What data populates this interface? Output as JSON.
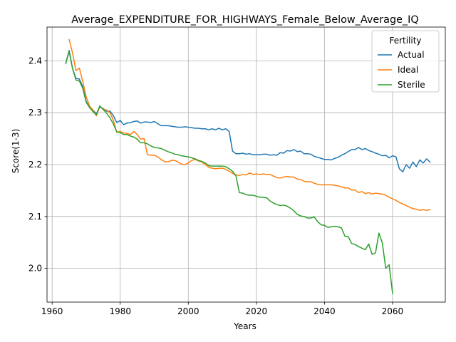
{
  "chart_data": {
    "type": "line",
    "title": "Average_EXPENDITURE_FOR_HIGHWAYS_Female_Below_Average_IQ",
    "xlabel": "Years",
    "ylabel": "Score(1-3)",
    "xlim": [
      1958.5,
      2075.5
    ],
    "ylim": [
      1.935,
      2.465
    ],
    "x_ticks": [
      1960,
      1980,
      2000,
      2020,
      2040,
      2060
    ],
    "y_ticks": [
      2.0,
      2.1,
      2.2,
      2.3,
      2.4
    ],
    "y_tick_labels": [
      "2.0",
      "2.1",
      "2.2",
      "2.3",
      "2.4"
    ],
    "grid": true,
    "legend": {
      "title": "Fertility",
      "position": "top-right"
    },
    "series": [
      {
        "name": "Actual",
        "color": "#1f77b4",
        "points": [
          [
            1964,
            2.395
          ],
          [
            1965,
            2.42
          ],
          [
            1966,
            2.385
          ],
          [
            1967,
            2.366
          ],
          [
            1968,
            2.365
          ],
          [
            1969,
            2.35
          ],
          [
            1970,
            2.322
          ],
          [
            1971,
            2.31
          ],
          [
            1972,
            2.305
          ],
          [
            1973,
            2.298
          ],
          [
            1974,
            2.311
          ],
          [
            1975,
            2.308
          ],
          [
            1976,
            2.303
          ],
          [
            1977,
            2.303
          ],
          [
            1978,
            2.294
          ],
          [
            1979,
            2.281
          ],
          [
            1980,
            2.285
          ],
          [
            1981,
            2.277
          ],
          [
            1982,
            2.28
          ],
          [
            1983,
            2.281
          ],
          [
            1984,
            2.283
          ],
          [
            1985,
            2.284
          ],
          [
            1986,
            2.28
          ],
          [
            1987,
            2.282
          ],
          [
            1988,
            2.282
          ],
          [
            1989,
            2.281
          ],
          [
            1990,
            2.283
          ],
          [
            1991,
            2.279
          ],
          [
            1992,
            2.275
          ],
          [
            1993,
            2.275
          ],
          [
            1994,
            2.275
          ],
          [
            1995,
            2.274
          ],
          [
            1996,
            2.273
          ],
          [
            1997,
            2.272
          ],
          [
            1998,
            2.272
          ],
          [
            1999,
            2.273
          ],
          [
            2000,
            2.272
          ],
          [
            2001,
            2.271
          ],
          [
            2002,
            2.27
          ],
          [
            2003,
            2.27
          ],
          [
            2004,
            2.269
          ],
          [
            2005,
            2.269
          ],
          [
            2006,
            2.267
          ],
          [
            2007,
            2.269
          ],
          [
            2008,
            2.267
          ],
          [
            2009,
            2.27
          ],
          [
            2010,
            2.267
          ],
          [
            2011,
            2.269
          ],
          [
            2012,
            2.264
          ],
          [
            2013,
            2.226
          ],
          [
            2014,
            2.221
          ],
          [
            2015,
            2.221
          ],
          [
            2016,
            2.222
          ],
          [
            2017,
            2.22
          ],
          [
            2018,
            2.221
          ],
          [
            2019,
            2.219
          ],
          [
            2020,
            2.219
          ],
          [
            2021,
            2.219
          ],
          [
            2022,
            2.22
          ],
          [
            2023,
            2.22
          ],
          [
            2024,
            2.218
          ],
          [
            2025,
            2.219
          ],
          [
            2026,
            2.218
          ],
          [
            2027,
            2.223
          ],
          [
            2028,
            2.222
          ],
          [
            2029,
            2.227
          ],
          [
            2030,
            2.226
          ],
          [
            2031,
            2.229
          ],
          [
            2032,
            2.225
          ],
          [
            2033,
            2.226
          ],
          [
            2034,
            2.221
          ],
          [
            2035,
            2.221
          ],
          [
            2036,
            2.22
          ],
          [
            2037,
            2.216
          ],
          [
            2038,
            2.214
          ],
          [
            2039,
            2.212
          ],
          [
            2040,
            2.21
          ],
          [
            2041,
            2.21
          ],
          [
            2042,
            2.209
          ],
          [
            2043,
            2.212
          ],
          [
            2044,
            2.214
          ],
          [
            2045,
            2.218
          ],
          [
            2046,
            2.221
          ],
          [
            2047,
            2.225
          ],
          [
            2048,
            2.229
          ],
          [
            2049,
            2.229
          ],
          [
            2050,
            2.233
          ],
          [
            2051,
            2.229
          ],
          [
            2052,
            2.231
          ],
          [
            2053,
            2.227
          ],
          [
            2054,
            2.225
          ],
          [
            2055,
            2.222
          ],
          [
            2056,
            2.22
          ],
          [
            2057,
            2.217
          ],
          [
            2058,
            2.218
          ],
          [
            2059,
            2.213
          ],
          [
            2060,
            2.217
          ],
          [
            2061,
            2.215
          ],
          [
            2062,
            2.192
          ],
          [
            2063,
            2.186
          ],
          [
            2064,
            2.2
          ],
          [
            2065,
            2.193
          ],
          [
            2066,
            2.205
          ],
          [
            2067,
            2.196
          ],
          [
            2068,
            2.209
          ],
          [
            2069,
            2.203
          ],
          [
            2070,
            2.211
          ],
          [
            2071,
            2.205
          ]
        ]
      },
      {
        "name": "Ideal",
        "color": "#ff7f0e",
        "points": [
          [
            1965,
            2.441
          ],
          [
            1966,
            2.415
          ],
          [
            1967,
            2.381
          ],
          [
            1968,
            2.386
          ],
          [
            1969,
            2.36
          ],
          [
            1970,
            2.331
          ],
          [
            1971,
            2.313
          ],
          [
            1972,
            2.305
          ],
          [
            1973,
            2.294
          ],
          [
            1974,
            2.312
          ],
          [
            1975,
            2.307
          ],
          [
            1976,
            2.305
          ],
          [
            1977,
            2.3
          ],
          [
            1978,
            2.285
          ],
          [
            1979,
            2.262
          ],
          [
            1980,
            2.264
          ],
          [
            1981,
            2.261
          ],
          [
            1982,
            2.26
          ],
          [
            1983,
            2.258
          ],
          [
            1984,
            2.264
          ],
          [
            1985,
            2.258
          ],
          [
            1986,
            2.249
          ],
          [
            1987,
            2.25
          ],
          [
            1988,
            2.219
          ],
          [
            1989,
            2.218
          ],
          [
            1990,
            2.218
          ],
          [
            1991,
            2.215
          ],
          [
            1992,
            2.21
          ],
          [
            1993,
            2.206
          ],
          [
            1994,
            2.205
          ],
          [
            1995,
            2.208
          ],
          [
            1996,
            2.208
          ],
          [
            1997,
            2.205
          ],
          [
            1998,
            2.201
          ],
          [
            1999,
            2.2
          ],
          [
            2000,
            2.203
          ],
          [
            2001,
            2.208
          ],
          [
            2002,
            2.21
          ],
          [
            2003,
            2.207
          ],
          [
            2004,
            2.205
          ],
          [
            2005,
            2.2
          ],
          [
            2006,
            2.195
          ],
          [
            2007,
            2.193
          ],
          [
            2008,
            2.192
          ],
          [
            2009,
            2.193
          ],
          [
            2010,
            2.193
          ],
          [
            2011,
            2.191
          ],
          [
            2012,
            2.187
          ],
          [
            2013,
            2.183
          ],
          [
            2014,
            2.18
          ],
          [
            2015,
            2.179
          ],
          [
            2016,
            2.181
          ],
          [
            2017,
            2.18
          ],
          [
            2018,
            2.184
          ],
          [
            2019,
            2.181
          ],
          [
            2020,
            2.182
          ],
          [
            2021,
            2.181
          ],
          [
            2022,
            2.182
          ],
          [
            2023,
            2.181
          ],
          [
            2024,
            2.181
          ],
          [
            2025,
            2.178
          ],
          [
            2026,
            2.175
          ],
          [
            2027,
            2.174
          ],
          [
            2028,
            2.176
          ],
          [
            2029,
            2.177
          ],
          [
            2030,
            2.176
          ],
          [
            2031,
            2.176
          ],
          [
            2032,
            2.172
          ],
          [
            2033,
            2.171
          ],
          [
            2034,
            2.168
          ],
          [
            2035,
            2.167
          ],
          [
            2036,
            2.167
          ],
          [
            2037,
            2.164
          ],
          [
            2038,
            2.162
          ],
          [
            2039,
            2.161
          ],
          [
            2040,
            2.161
          ],
          [
            2041,
            2.161
          ],
          [
            2042,
            2.161
          ],
          [
            2043,
            2.16
          ],
          [
            2044,
            2.159
          ],
          [
            2045,
            2.157
          ],
          [
            2046,
            2.155
          ],
          [
            2047,
            2.155
          ],
          [
            2048,
            2.151
          ],
          [
            2049,
            2.151
          ],
          [
            2050,
            2.146
          ],
          [
            2051,
            2.148
          ],
          [
            2052,
            2.144
          ],
          [
            2053,
            2.146
          ],
          [
            2054,
            2.143
          ],
          [
            2055,
            2.145
          ],
          [
            2056,
            2.144
          ],
          [
            2057,
            2.143
          ],
          [
            2058,
            2.141
          ],
          [
            2059,
            2.137
          ],
          [
            2060,
            2.134
          ],
          [
            2061,
            2.131
          ],
          [
            2062,
            2.127
          ],
          [
            2063,
            2.124
          ],
          [
            2064,
            2.121
          ],
          [
            2065,
            2.118
          ],
          [
            2066,
            2.115
          ],
          [
            2067,
            2.114
          ],
          [
            2068,
            2.112
          ],
          [
            2069,
            2.113
          ],
          [
            2070,
            2.112
          ],
          [
            2071,
            2.113
          ]
        ]
      },
      {
        "name": "Sterile",
        "color": "#2ca02c",
        "points": [
          [
            1964,
            2.395
          ],
          [
            1965,
            2.418
          ],
          [
            1966,
            2.385
          ],
          [
            1967,
            2.363
          ],
          [
            1968,
            2.361
          ],
          [
            1969,
            2.347
          ],
          [
            1970,
            2.32
          ],
          [
            1971,
            2.31
          ],
          [
            1972,
            2.302
          ],
          [
            1973,
            2.296
          ],
          [
            1974,
            2.313
          ],
          [
            1975,
            2.306
          ],
          [
            1976,
            2.299
          ],
          [
            1977,
            2.29
          ],
          [
            1978,
            2.278
          ],
          [
            1979,
            2.263
          ],
          [
            1980,
            2.262
          ],
          [
            1981,
            2.258
          ],
          [
            1982,
            2.258
          ],
          [
            1983,
            2.255
          ],
          [
            1984,
            2.253
          ],
          [
            1985,
            2.249
          ],
          [
            1986,
            2.242
          ],
          [
            1987,
            2.242
          ],
          [
            1988,
            2.24
          ],
          [
            1989,
            2.236
          ],
          [
            1990,
            2.233
          ],
          [
            1991,
            2.232
          ],
          [
            1992,
            2.231
          ],
          [
            1993,
            2.228
          ],
          [
            1994,
            2.225
          ],
          [
            1995,
            2.223
          ],
          [
            1996,
            2.22
          ],
          [
            1997,
            2.219
          ],
          [
            1998,
            2.217
          ],
          [
            1999,
            2.216
          ],
          [
            2000,
            2.215
          ],
          [
            2001,
            2.213
          ],
          [
            2002,
            2.211
          ],
          [
            2003,
            2.208
          ],
          [
            2004,
            2.206
          ],
          [
            2005,
            2.203
          ],
          [
            2006,
            2.198
          ],
          [
            2007,
            2.197
          ],
          [
            2008,
            2.197
          ],
          [
            2009,
            2.197
          ],
          [
            2010,
            2.197
          ],
          [
            2011,
            2.196
          ],
          [
            2012,
            2.192
          ],
          [
            2013,
            2.187
          ],
          [
            2014,
            2.178
          ],
          [
            2015,
            2.146
          ],
          [
            2016,
            2.145
          ],
          [
            2017,
            2.142
          ],
          [
            2018,
            2.141
          ],
          [
            2019,
            2.141
          ],
          [
            2020,
            2.139
          ],
          [
            2021,
            2.137
          ],
          [
            2022,
            2.137
          ],
          [
            2023,
            2.136
          ],
          [
            2024,
            2.13
          ],
          [
            2025,
            2.126
          ],
          [
            2026,
            2.123
          ],
          [
            2027,
            2.121
          ],
          [
            2028,
            2.122
          ],
          [
            2029,
            2.12
          ],
          [
            2030,
            2.116
          ],
          [
            2031,
            2.111
          ],
          [
            2032,
            2.104
          ],
          [
            2033,
            2.101
          ],
          [
            2034,
            2.1
          ],
          [
            2035,
            2.097
          ],
          [
            2036,
            2.097
          ],
          [
            2037,
            2.099
          ],
          [
            2038,
            2.09
          ],
          [
            2039,
            2.084
          ],
          [
            2040,
            2.083
          ],
          [
            2041,
            2.079
          ],
          [
            2042,
            2.08
          ],
          [
            2043,
            2.081
          ],
          [
            2044,
            2.08
          ],
          [
            2045,
            2.078
          ],
          [
            2046,
            2.062
          ],
          [
            2047,
            2.061
          ],
          [
            2048,
            2.048
          ],
          [
            2049,
            2.046
          ],
          [
            2050,
            2.042
          ],
          [
            2051,
            2.039
          ],
          [
            2052,
            2.036
          ],
          [
            2053,
            2.047
          ],
          [
            2054,
            2.027
          ],
          [
            2055,
            2.03
          ],
          [
            2056,
            2.068
          ],
          [
            2057,
            2.049
          ],
          [
            2058,
            2.0
          ],
          [
            2059,
            2.007
          ],
          [
            2060,
            1.952
          ]
        ]
      }
    ]
  }
}
